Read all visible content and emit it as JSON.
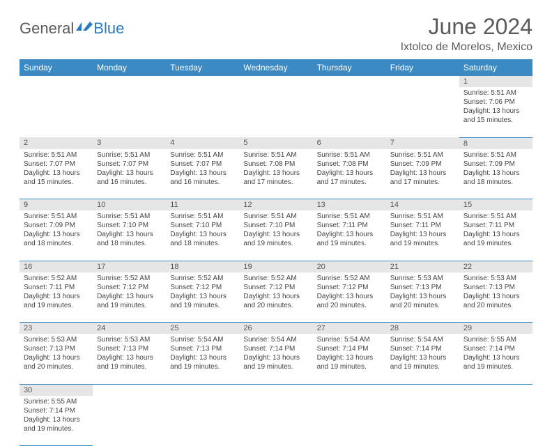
{
  "logo": {
    "general": "General",
    "blue": "Blue"
  },
  "title": "June 2024",
  "location": "Ixtolco de Morelos, Mexico",
  "colors": {
    "header_bg": "#3b8ac4",
    "header_text": "#ffffff",
    "daynum_bg": "#e6e6e6",
    "text": "#444444",
    "border": "#3b8ac4",
    "logo_gray": "#5a5a5a",
    "logo_blue": "#2b7bbf"
  },
  "dayHeaders": [
    "Sunday",
    "Monday",
    "Tuesday",
    "Wednesday",
    "Thursday",
    "Friday",
    "Saturday"
  ],
  "weeks": [
    [
      null,
      null,
      null,
      null,
      null,
      null,
      {
        "d": "1",
        "sr": "5:51 AM",
        "ss": "7:06 PM",
        "dl": "13 hours and 15 minutes."
      }
    ],
    [
      {
        "d": "2",
        "sr": "5:51 AM",
        "ss": "7:07 PM",
        "dl": "13 hours and 15 minutes."
      },
      {
        "d": "3",
        "sr": "5:51 AM",
        "ss": "7:07 PM",
        "dl": "13 hours and 16 minutes."
      },
      {
        "d": "4",
        "sr": "5:51 AM",
        "ss": "7:07 PM",
        "dl": "13 hours and 16 minutes."
      },
      {
        "d": "5",
        "sr": "5:51 AM",
        "ss": "7:08 PM",
        "dl": "13 hours and 17 minutes."
      },
      {
        "d": "6",
        "sr": "5:51 AM",
        "ss": "7:08 PM",
        "dl": "13 hours and 17 minutes."
      },
      {
        "d": "7",
        "sr": "5:51 AM",
        "ss": "7:09 PM",
        "dl": "13 hours and 17 minutes."
      },
      {
        "d": "8",
        "sr": "5:51 AM",
        "ss": "7:09 PM",
        "dl": "13 hours and 18 minutes."
      }
    ],
    [
      {
        "d": "9",
        "sr": "5:51 AM",
        "ss": "7:09 PM",
        "dl": "13 hours and 18 minutes."
      },
      {
        "d": "10",
        "sr": "5:51 AM",
        "ss": "7:10 PM",
        "dl": "13 hours and 18 minutes."
      },
      {
        "d": "11",
        "sr": "5:51 AM",
        "ss": "7:10 PM",
        "dl": "13 hours and 18 minutes."
      },
      {
        "d": "12",
        "sr": "5:51 AM",
        "ss": "7:10 PM",
        "dl": "13 hours and 19 minutes."
      },
      {
        "d": "13",
        "sr": "5:51 AM",
        "ss": "7:11 PM",
        "dl": "13 hours and 19 minutes."
      },
      {
        "d": "14",
        "sr": "5:51 AM",
        "ss": "7:11 PM",
        "dl": "13 hours and 19 minutes."
      },
      {
        "d": "15",
        "sr": "5:51 AM",
        "ss": "7:11 PM",
        "dl": "13 hours and 19 minutes."
      }
    ],
    [
      {
        "d": "16",
        "sr": "5:52 AM",
        "ss": "7:11 PM",
        "dl": "13 hours and 19 minutes."
      },
      {
        "d": "17",
        "sr": "5:52 AM",
        "ss": "7:12 PM",
        "dl": "13 hours and 19 minutes."
      },
      {
        "d": "18",
        "sr": "5:52 AM",
        "ss": "7:12 PM",
        "dl": "13 hours and 19 minutes."
      },
      {
        "d": "19",
        "sr": "5:52 AM",
        "ss": "7:12 PM",
        "dl": "13 hours and 20 minutes."
      },
      {
        "d": "20",
        "sr": "5:52 AM",
        "ss": "7:12 PM",
        "dl": "13 hours and 20 minutes."
      },
      {
        "d": "21",
        "sr": "5:53 AM",
        "ss": "7:13 PM",
        "dl": "13 hours and 20 minutes."
      },
      {
        "d": "22",
        "sr": "5:53 AM",
        "ss": "7:13 PM",
        "dl": "13 hours and 20 minutes."
      }
    ],
    [
      {
        "d": "23",
        "sr": "5:53 AM",
        "ss": "7:13 PM",
        "dl": "13 hours and 20 minutes."
      },
      {
        "d": "24",
        "sr": "5:53 AM",
        "ss": "7:13 PM",
        "dl": "13 hours and 19 minutes."
      },
      {
        "d": "25",
        "sr": "5:54 AM",
        "ss": "7:13 PM",
        "dl": "13 hours and 19 minutes."
      },
      {
        "d": "26",
        "sr": "5:54 AM",
        "ss": "7:14 PM",
        "dl": "13 hours and 19 minutes."
      },
      {
        "d": "27",
        "sr": "5:54 AM",
        "ss": "7:14 PM",
        "dl": "13 hours and 19 minutes."
      },
      {
        "d": "28",
        "sr": "5:54 AM",
        "ss": "7:14 PM",
        "dl": "13 hours and 19 minutes."
      },
      {
        "d": "29",
        "sr": "5:55 AM",
        "ss": "7:14 PM",
        "dl": "13 hours and 19 minutes."
      }
    ],
    [
      {
        "d": "30",
        "sr": "5:55 AM",
        "ss": "7:14 PM",
        "dl": "13 hours and 19 minutes."
      },
      null,
      null,
      null,
      null,
      null,
      null
    ]
  ],
  "labels": {
    "sunrise": "Sunrise:",
    "sunset": "Sunset:",
    "daylight": "Daylight:"
  }
}
